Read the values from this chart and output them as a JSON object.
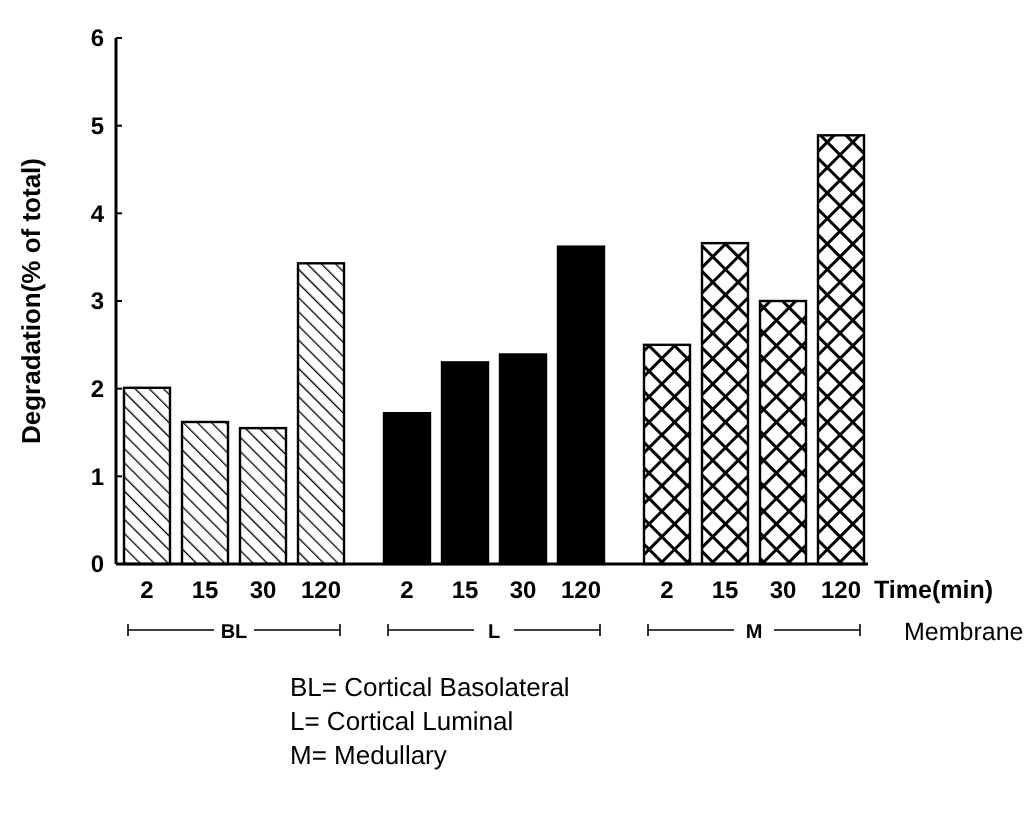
{
  "chart_data": {
    "type": "bar",
    "ylabel": "Degradation(% of total)",
    "xlabel": "Time(min)",
    "categories": [
      "2",
      "15",
      "30",
      "120",
      "2",
      "15",
      "30",
      "120",
      "2",
      "15",
      "30",
      "120"
    ],
    "values": [
      2.01,
      1.62,
      1.55,
      3.43,
      1.72,
      2.3,
      2.39,
      3.62,
      2.5,
      3.66,
      3.0,
      4.89
    ],
    "ylim": [
      0,
      6
    ],
    "yticks": [
      0,
      1,
      2,
      3,
      4,
      5,
      6
    ],
    "annotations": [
      "BL",
      "L",
      "M",
      "Membrane",
      "BL= Cortical Basolateral",
      "L= Cortical Luminal",
      "M= Medullary"
    ]
  }
}
